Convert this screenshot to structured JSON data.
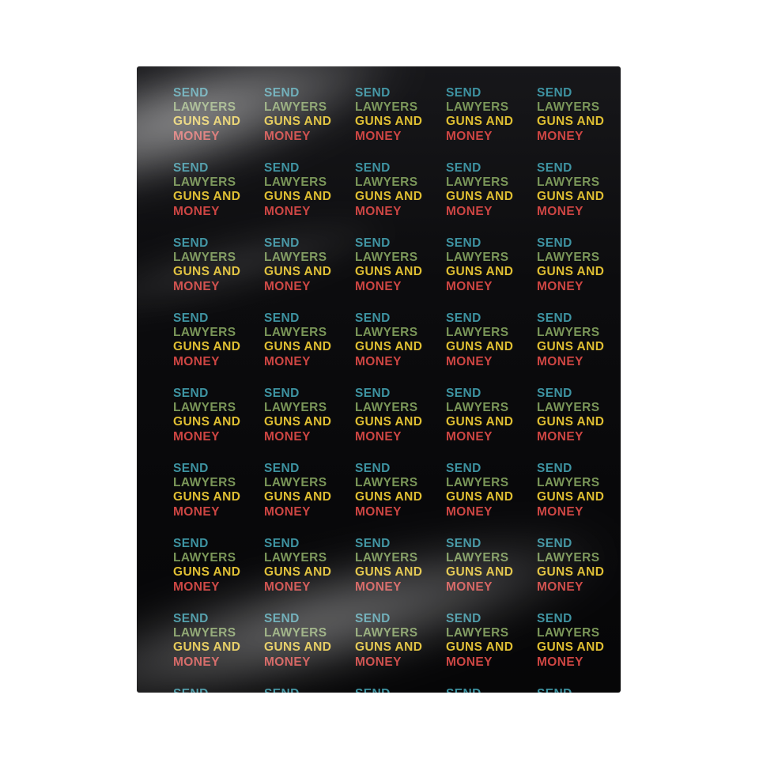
{
  "page": {
    "background_color": "#ffffff"
  },
  "blanket": {
    "base_color": "#0b0b0d",
    "sheen_color": "#ffffff",
    "grid": {
      "columns": 5,
      "rows": 9,
      "full_rows_visible": 8,
      "last_row_clipped": true
    },
    "tile_lines": [
      {
        "text": "SEND",
        "color": "#4099a8"
      },
      {
        "text": "LAWYERS",
        "color": "#7f9c5c"
      },
      {
        "text": "GUNS AND",
        "color": "#e8c634"
      },
      {
        "text": "MONEY",
        "color": "#d54845"
      }
    ]
  }
}
